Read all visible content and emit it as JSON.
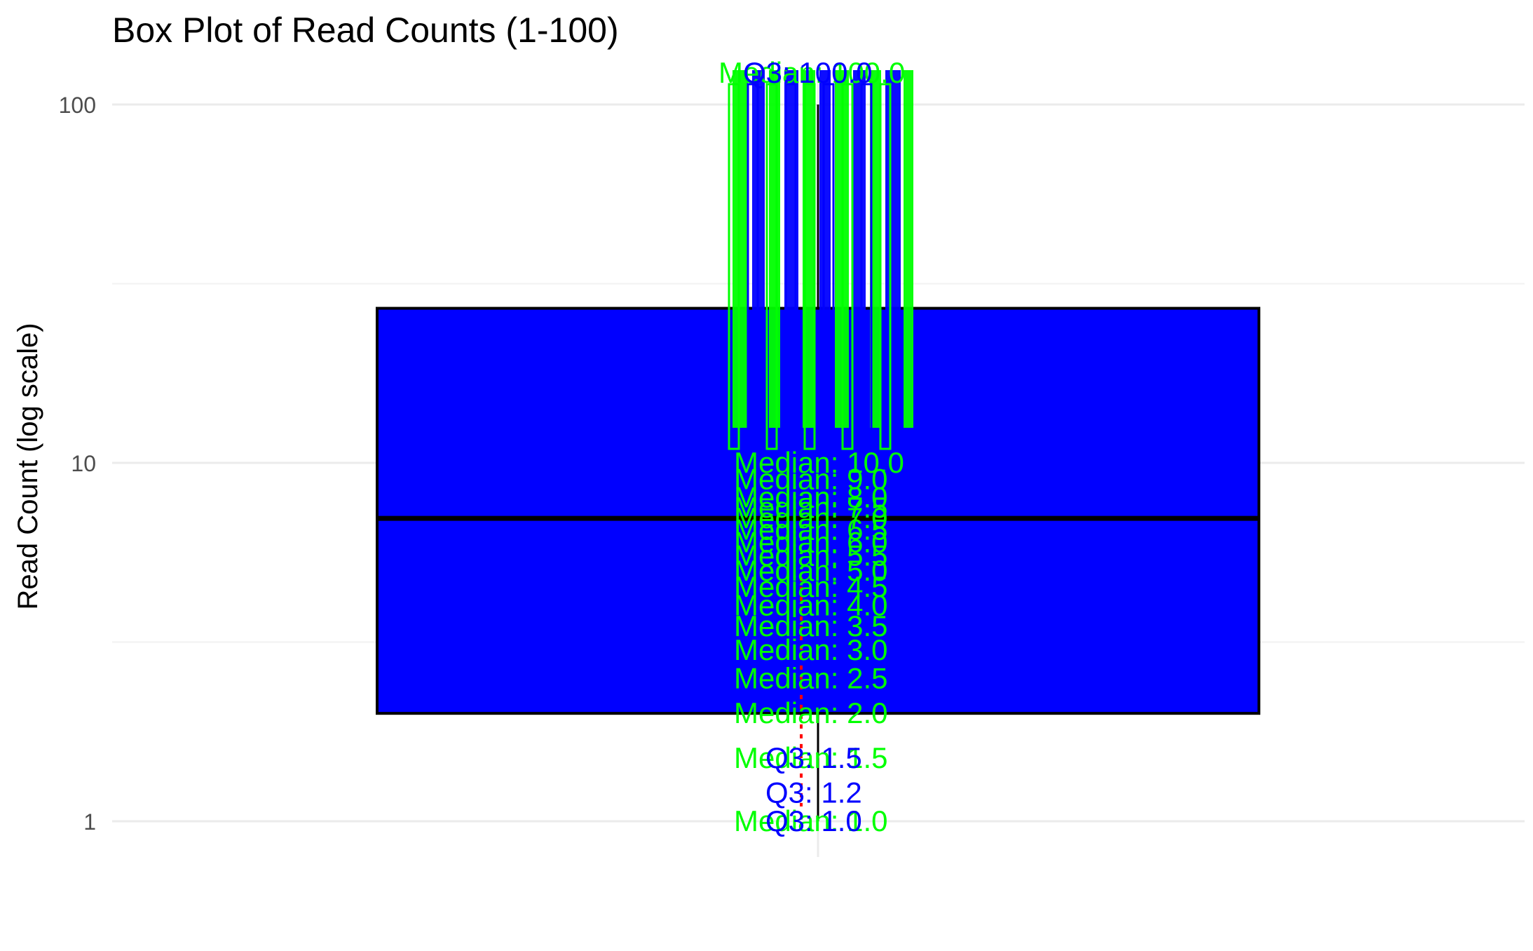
{
  "chart_data": {
    "type": "box",
    "title": "Box Plot of Read Counts (1-100)",
    "xlabel": "",
    "ylabel": "Read Count (log scale)",
    "y_scale": "log10",
    "ylim": [
      0.89,
      110
    ],
    "y_ticks": [
      1,
      10,
      100
    ],
    "y_tick_labels": [
      "1",
      "10",
      "100"
    ],
    "grid": true,
    "box": {
      "min": 1,
      "q1": 2,
      "median": 7,
      "q3": 27,
      "max": 100,
      "fill": "#0000ff",
      "outline": "#000000"
    },
    "overlay_labels": {
      "median_color": "#00ff00",
      "q3_color": "#0000ff",
      "mean_line_color": "#ff0000",
      "median_labels": [
        {
          "text": "Median: 1.0",
          "y": 1.0
        },
        {
          "text": "Median: 1.5",
          "y": 1.5
        },
        {
          "text": "Median: 2.0",
          "y": 2.0
        },
        {
          "text": "Median: 2.5",
          "y": 2.5
        },
        {
          "text": "Median: 3.0",
          "y": 3.0
        },
        {
          "text": "Median: 3.5",
          "y": 3.5
        },
        {
          "text": "Median: 4.0",
          "y": 4.0
        },
        {
          "text": "Median: 4.5",
          "y": 4.5
        },
        {
          "text": "Median: 5.0",
          "y": 5.0
        },
        {
          "text": "Median: 5.5",
          "y": 5.5
        },
        {
          "text": "Median: 6.0",
          "y": 6.0
        },
        {
          "text": "Median: 6.5",
          "y": 6.5
        },
        {
          "text": "Median: 7.0",
          "y": 7.0
        },
        {
          "text": "Median: 7.5",
          "y": 7.5
        },
        {
          "text": "Median: 8.0",
          "y": 8.0
        },
        {
          "text": "Median: 9.0",
          "y": 9.0
        },
        {
          "text": "Median: 10.0",
          "y": 10.0
        }
      ],
      "q3_labels": [
        {
          "text": "Q3: 1.0",
          "y": 1.0
        },
        {
          "text": "Q3: 1.2",
          "y": 1.2
        },
        {
          "text": "Q3: 1.5",
          "y": 1.5
        }
      ]
    }
  }
}
